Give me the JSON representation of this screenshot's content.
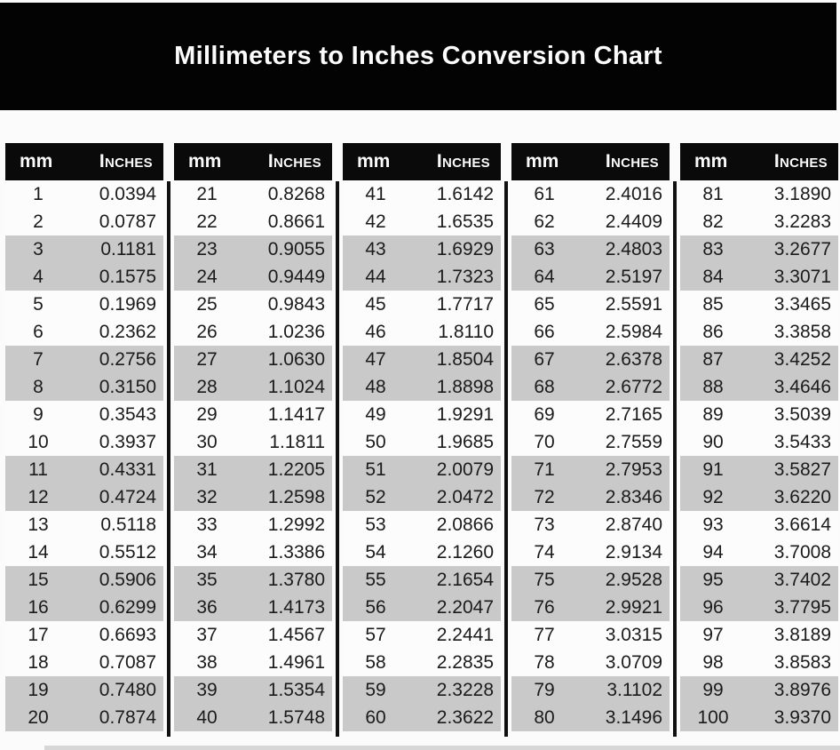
{
  "title": "Millimeters to Inches Conversion Chart",
  "colors": {
    "banner_bg": "#030303",
    "banner_text": "#fcfcfc",
    "table_header_bg": "#0a0a0a",
    "table_header_text": "#fafafa",
    "row_white": "#fcfcfc",
    "row_shaded": "#c9c9c9",
    "divider": "#101010",
    "page_bg": "#fbfbfb"
  },
  "row_shading": {
    "pattern": "two white rows then two gray rows, repeating",
    "shaded_rows_1based": [
      3,
      4,
      7,
      8,
      11,
      12,
      15,
      16,
      19,
      20
    ]
  },
  "chart_data": {
    "type": "table",
    "title": "Millimeters to Inches Conversion Chart",
    "columns": [
      "mm",
      "Inches"
    ],
    "layout": "five side-by-side mm/Inches tables of 20 rows each, separated by vertical black rules",
    "blocks": [
      {
        "rows": [
          [
            1,
            "0.0394"
          ],
          [
            2,
            "0.0787"
          ],
          [
            3,
            "0.1181"
          ],
          [
            4,
            "0.1575"
          ],
          [
            5,
            "0.1969"
          ],
          [
            6,
            "0.2362"
          ],
          [
            7,
            "0.2756"
          ],
          [
            8,
            "0.3150"
          ],
          [
            9,
            "0.3543"
          ],
          [
            10,
            "0.3937"
          ],
          [
            11,
            "0.4331"
          ],
          [
            12,
            "0.4724"
          ],
          [
            13,
            "0.5118"
          ],
          [
            14,
            "0.5512"
          ],
          [
            15,
            "0.5906"
          ],
          [
            16,
            "0.6299"
          ],
          [
            17,
            "0.6693"
          ],
          [
            18,
            "0.7087"
          ],
          [
            19,
            "0.7480"
          ],
          [
            20,
            "0.7874"
          ]
        ]
      },
      {
        "rows": [
          [
            21,
            "0.8268"
          ],
          [
            22,
            "0.8661"
          ],
          [
            23,
            "0.9055"
          ],
          [
            24,
            "0.9449"
          ],
          [
            25,
            "0.9843"
          ],
          [
            26,
            "1.0236"
          ],
          [
            27,
            "1.0630"
          ],
          [
            28,
            "1.1024"
          ],
          [
            29,
            "1.1417"
          ],
          [
            30,
            "1.1811"
          ],
          [
            31,
            "1.2205"
          ],
          [
            32,
            "1.2598"
          ],
          [
            33,
            "1.2992"
          ],
          [
            34,
            "1.3386"
          ],
          [
            35,
            "1.3780"
          ],
          [
            36,
            "1.4173"
          ],
          [
            37,
            "1.4567"
          ],
          [
            38,
            "1.4961"
          ],
          [
            39,
            "1.5354"
          ],
          [
            40,
            "1.5748"
          ]
        ]
      },
      {
        "rows": [
          [
            41,
            "1.6142"
          ],
          [
            42,
            "1.6535"
          ],
          [
            43,
            "1.6929"
          ],
          [
            44,
            "1.7323"
          ],
          [
            45,
            "1.7717"
          ],
          [
            46,
            "1.8110"
          ],
          [
            47,
            "1.8504"
          ],
          [
            48,
            "1.8898"
          ],
          [
            49,
            "1.9291"
          ],
          [
            50,
            "1.9685"
          ],
          [
            51,
            "2.0079"
          ],
          [
            52,
            "2.0472"
          ],
          [
            53,
            "2.0866"
          ],
          [
            54,
            "2.1260"
          ],
          [
            55,
            "2.1654"
          ],
          [
            56,
            "2.2047"
          ],
          [
            57,
            "2.2441"
          ],
          [
            58,
            "2.2835"
          ],
          [
            59,
            "2.3228"
          ],
          [
            60,
            "2.3622"
          ]
        ]
      },
      {
        "rows": [
          [
            61,
            "2.4016"
          ],
          [
            62,
            "2.4409"
          ],
          [
            63,
            "2.4803"
          ],
          [
            64,
            "2.5197"
          ],
          [
            65,
            "2.5591"
          ],
          [
            66,
            "2.5984"
          ],
          [
            67,
            "2.6378"
          ],
          [
            68,
            "2.6772"
          ],
          [
            69,
            "2.7165"
          ],
          [
            70,
            "2.7559"
          ],
          [
            71,
            "2.7953"
          ],
          [
            72,
            "2.8346"
          ],
          [
            73,
            "2.8740"
          ],
          [
            74,
            "2.9134"
          ],
          [
            75,
            "2.9528"
          ],
          [
            76,
            "2.9921"
          ],
          [
            77,
            "3.0315"
          ],
          [
            78,
            "3.0709"
          ],
          [
            79,
            "3.1102"
          ],
          [
            80,
            "3.1496"
          ]
        ]
      },
      {
        "rows": [
          [
            81,
            "3.1890"
          ],
          [
            82,
            "3.2283"
          ],
          [
            83,
            "3.2677"
          ],
          [
            84,
            "3.3071"
          ],
          [
            85,
            "3.3465"
          ],
          [
            86,
            "3.3858"
          ],
          [
            87,
            "3.4252"
          ],
          [
            88,
            "3.4646"
          ],
          [
            89,
            "3.5039"
          ],
          [
            90,
            "3.5433"
          ],
          [
            91,
            "3.5827"
          ],
          [
            92,
            "3.6220"
          ],
          [
            93,
            "3.6614"
          ],
          [
            94,
            "3.7008"
          ],
          [
            95,
            "3.7402"
          ],
          [
            96,
            "3.7795"
          ],
          [
            97,
            "3.8189"
          ],
          [
            98,
            "3.8583"
          ],
          [
            99,
            "3.8976"
          ],
          [
            100,
            "3.9370"
          ]
        ]
      }
    ]
  }
}
